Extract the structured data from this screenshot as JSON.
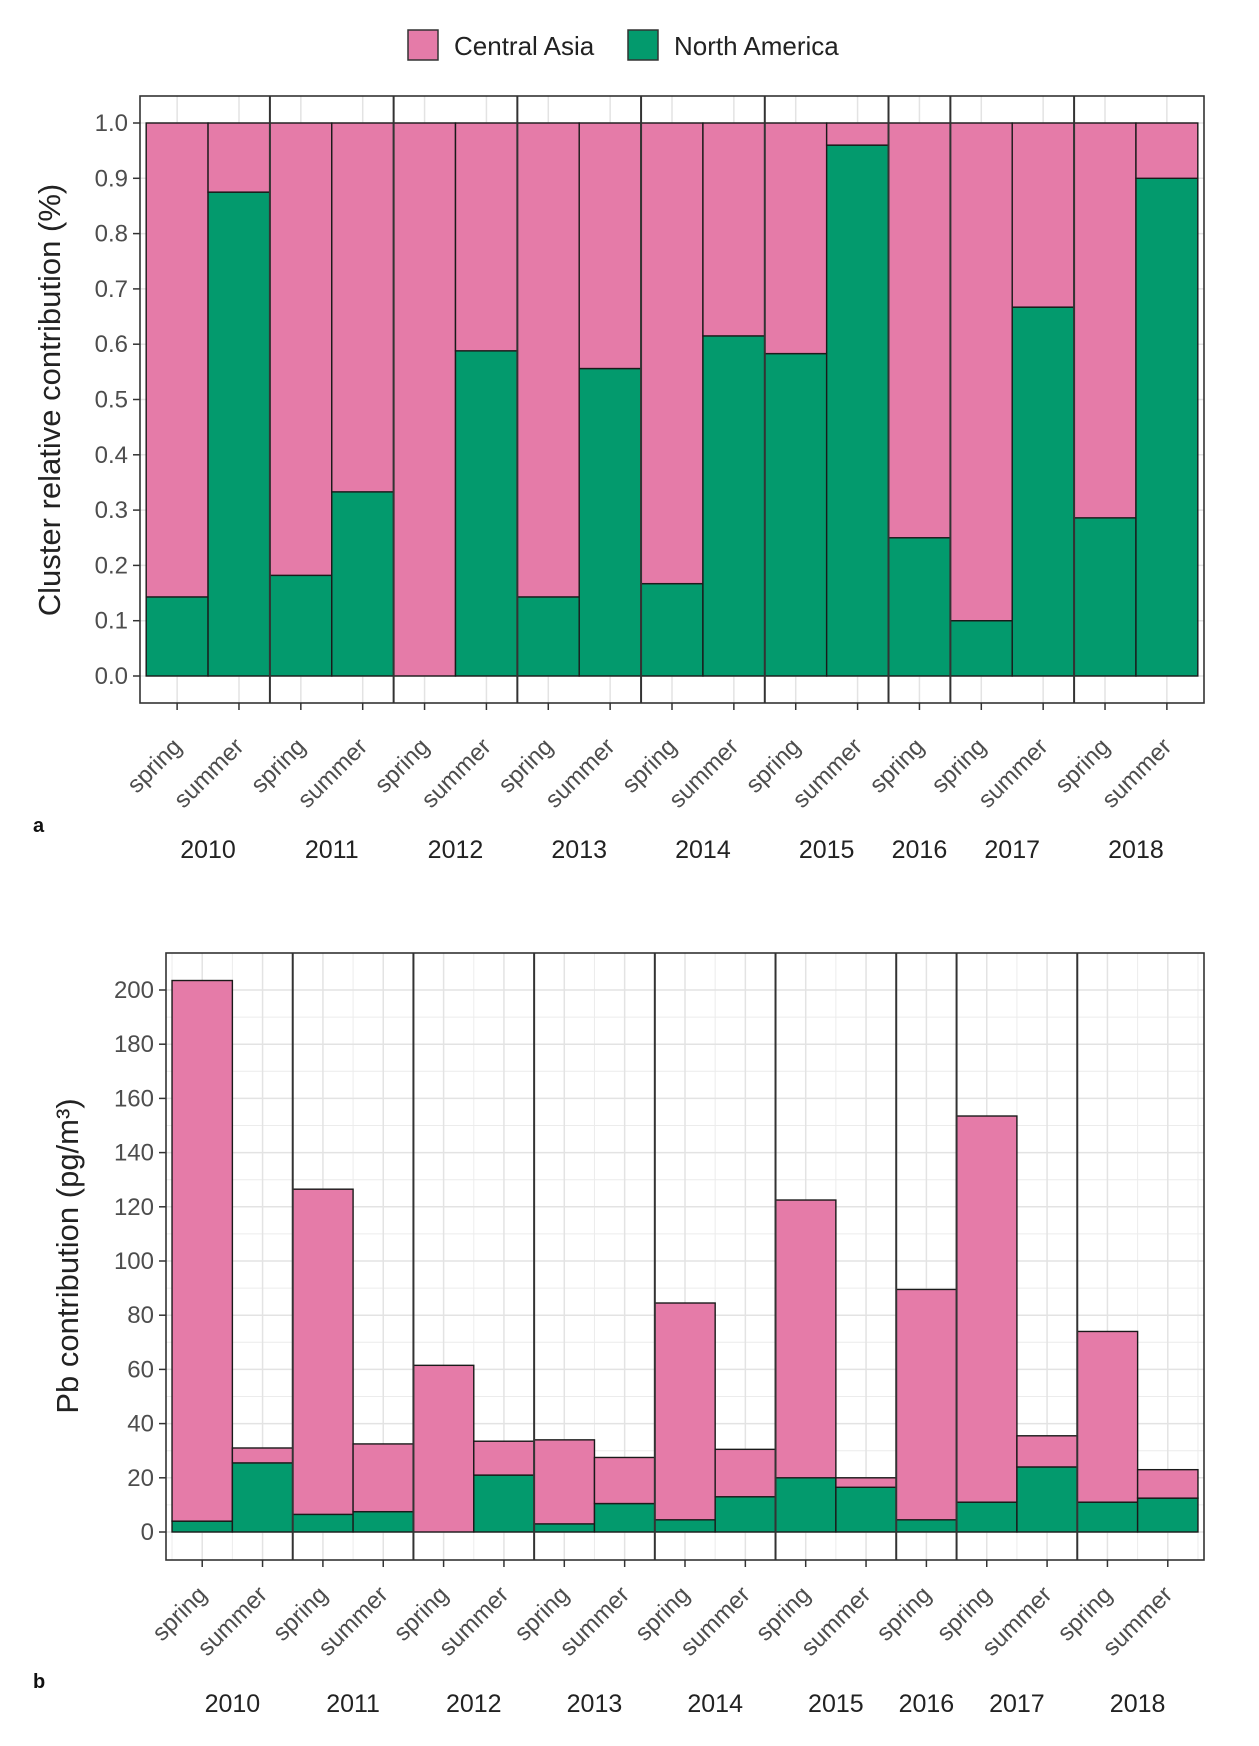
{
  "legend": {
    "items": [
      {
        "name": "Central Asia",
        "color": "#e57ba8"
      },
      {
        "name": "North America",
        "color": "#039a6d"
      }
    ]
  },
  "chart_data": [
    {
      "type": "bar",
      "stacked": true,
      "panel_label": "a",
      "ylabel": "Cluster relative contribution (%)",
      "ylim": [
        0,
        1.0
      ],
      "yticks": [
        "0.0",
        "0.1",
        "0.2",
        "0.3",
        "0.4",
        "0.5",
        "0.6",
        "0.7",
        "0.8",
        "0.9",
        "1.0"
      ],
      "groups": [
        "2010",
        "2011",
        "2012",
        "2013",
        "2014",
        "2015",
        "2016",
        "2017",
        "2018"
      ],
      "categories": [
        {
          "year": "2010",
          "season": "spring"
        },
        {
          "year": "2010",
          "season": "summer"
        },
        {
          "year": "2011",
          "season": "spring"
        },
        {
          "year": "2011",
          "season": "summer"
        },
        {
          "year": "2012",
          "season": "spring"
        },
        {
          "year": "2012",
          "season": "summer"
        },
        {
          "year": "2013",
          "season": "spring"
        },
        {
          "year": "2013",
          "season": "summer"
        },
        {
          "year": "2014",
          "season": "spring"
        },
        {
          "year": "2014",
          "season": "summer"
        },
        {
          "year": "2015",
          "season": "spring"
        },
        {
          "year": "2015",
          "season": "summer"
        },
        {
          "year": "2016",
          "season": "spring"
        },
        {
          "year": "2017",
          "season": "spring"
        },
        {
          "year": "2017",
          "season": "summer"
        },
        {
          "year": "2018",
          "season": "spring"
        },
        {
          "year": "2018",
          "season": "summer"
        }
      ],
      "series": [
        {
          "name": "North America",
          "values": [
            0.143,
            0.875,
            0.182,
            0.333,
            0.0,
            0.588,
            0.143,
            0.556,
            0.167,
            0.615,
            0.583,
            0.96,
            0.25,
            0.1,
            0.667,
            0.286,
            0.9
          ]
        },
        {
          "name": "Central Asia",
          "values": [
            0.857,
            0.125,
            0.818,
            0.667,
            1.0,
            0.412,
            0.857,
            0.444,
            0.833,
            0.385,
            0.417,
            0.04,
            0.75,
            0.9,
            0.333,
            0.714,
            0.1
          ]
        }
      ]
    },
    {
      "type": "bar",
      "stacked": true,
      "panel_label": "b",
      "ylabel": "Pb contribution (pg/m³)",
      "ylim": [
        0,
        215
      ],
      "yticks": [
        "0",
        "20",
        "40",
        "60",
        "80",
        "100",
        "120",
        "140",
        "160",
        "180",
        "200"
      ],
      "groups": [
        "2010",
        "2011",
        "2012",
        "2013",
        "2014",
        "2015",
        "2016",
        "2017",
        "2018"
      ],
      "categories": [
        {
          "year": "2010",
          "season": "spring"
        },
        {
          "year": "2010",
          "season": "summer"
        },
        {
          "year": "2011",
          "season": "spring"
        },
        {
          "year": "2011",
          "season": "summer"
        },
        {
          "year": "2012",
          "season": "spring"
        },
        {
          "year": "2012",
          "season": "summer"
        },
        {
          "year": "2013",
          "season": "spring"
        },
        {
          "year": "2013",
          "season": "summer"
        },
        {
          "year": "2014",
          "season": "spring"
        },
        {
          "year": "2014",
          "season": "summer"
        },
        {
          "year": "2015",
          "season": "spring"
        },
        {
          "year": "2015",
          "season": "summer"
        },
        {
          "year": "2016",
          "season": "spring"
        },
        {
          "year": "2017",
          "season": "spring"
        },
        {
          "year": "2017",
          "season": "summer"
        },
        {
          "year": "2018",
          "season": "spring"
        },
        {
          "year": "2018",
          "season": "summer"
        }
      ],
      "series": [
        {
          "name": "North America",
          "values": [
            4,
            25.5,
            6.5,
            7.5,
            0,
            21,
            3,
            10.5,
            4.5,
            13,
            20,
            16.5,
            4.5,
            11,
            24,
            11,
            12.5
          ]
        },
        {
          "name": "Central Asia",
          "values": [
            199.5,
            5.5,
            120,
            25,
            61.5,
            12.5,
            31,
            17,
            80,
            17.5,
            102.5,
            3.5,
            85,
            142.5,
            11.5,
            63,
            10.5
          ]
        }
      ]
    }
  ]
}
